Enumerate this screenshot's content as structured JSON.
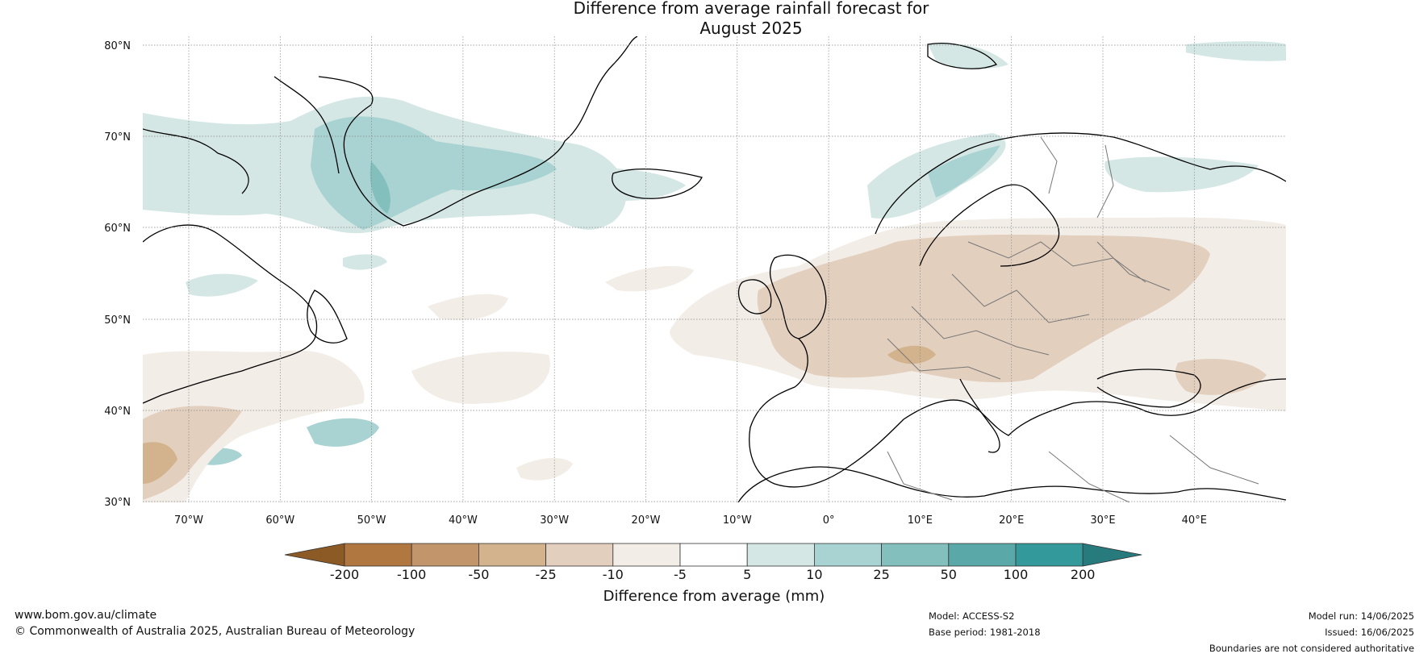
{
  "title_line1": "Difference from average rainfall forecast for",
  "title_line2": "August 2025",
  "lat_labels": [
    "80°N",
    "70°N",
    "60°N",
    "50°N",
    "40°N",
    "30°N"
  ],
  "lon_labels": [
    "70°W",
    "60°W",
    "50°W",
    "40°W",
    "30°W",
    "20°W",
    "10°W",
    "0°",
    "10°E",
    "20°E",
    "30°E",
    "40°E"
  ],
  "colorbar": {
    "title": "Difference from average (mm)",
    "ticks": [
      "-200",
      "-100",
      "-50",
      "-25",
      "-10",
      "-5",
      "5",
      "10",
      "25",
      "50",
      "100",
      "200"
    ],
    "colors": [
      "#8c5a25",
      "#b07840",
      "#c3956a",
      "#d2b38e",
      "#e3cfbd",
      "#f2ede7",
      "#ffffff",
      "#d4e7e5",
      "#a9d3d2",
      "#83c0bd",
      "#5aa9a8",
      "#33999a",
      "#277b7c"
    ]
  },
  "footer": {
    "website": "www.bom.gov.au/climate",
    "copyright": "© Commonwealth of Australia 2025, Australian Bureau of Meteorology",
    "model": "Model: ACCESS-S2",
    "base_period": "Base period: 1981-2018",
    "model_run": "Model run: 14/06/2025",
    "issued": "Issued: 16/06/2025",
    "disclaimer": "Boundaries are not considered authoritative"
  }
}
